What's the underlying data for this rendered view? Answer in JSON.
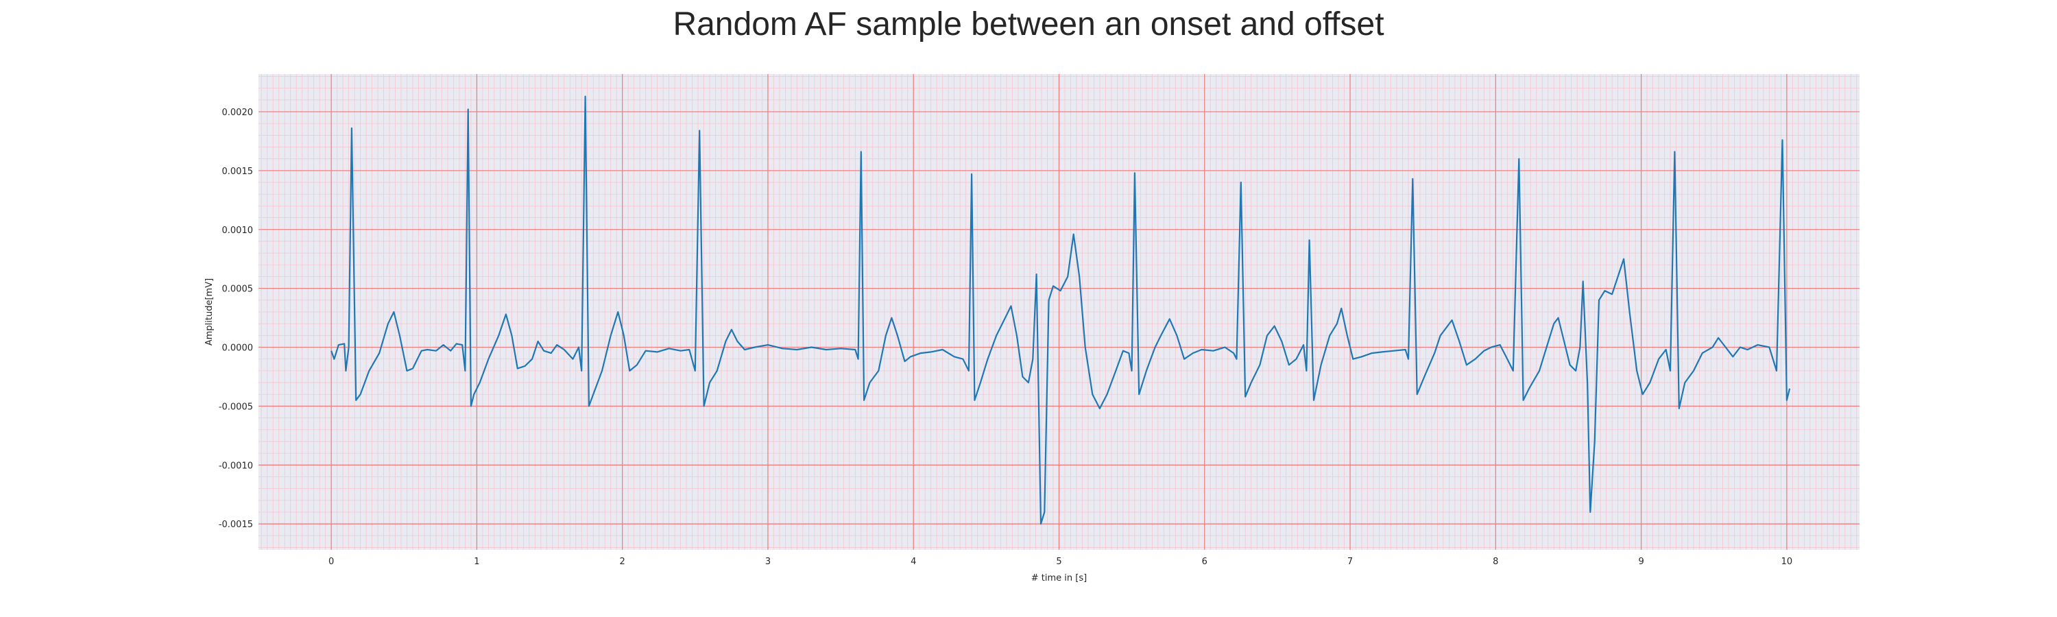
{
  "chart_data": {
    "type": "line",
    "title": "Random AF sample between an onset and offset",
    "xlabel": "# time in [s]",
    "ylabel": "Amplitude[mV]",
    "xlim": [
      -0.5,
      10.5
    ],
    "ylim": [
      -0.00172,
      0.00232
    ],
    "x_ticks": [
      0,
      1,
      2,
      3,
      4,
      5,
      6,
      7,
      8,
      9,
      10
    ],
    "x_tick_labels": [
      "0",
      "1",
      "2",
      "3",
      "4",
      "5",
      "6",
      "7",
      "8",
      "9",
      "10"
    ],
    "y_ticks": [
      -0.0015,
      -0.001,
      -0.0005,
      0.0,
      0.0005,
      0.001,
      0.0015,
      0.002
    ],
    "y_tick_labels": [
      "-0.0015",
      "-0.0010",
      "-0.0005",
      "0.0000",
      "0.0005",
      "0.0010",
      "0.0015",
      "0.0020"
    ],
    "grid": true,
    "major_grid_color": "#f08080",
    "minor_grid_color": "#f5c6cf",
    "background_color": "#eaeaf2",
    "series": [
      {
        "color": "#1f77b4",
        "points": [
          [
            0.0,
            -3e-05
          ],
          [
            0.02,
            -0.0001
          ],
          [
            0.05,
            2e-05
          ],
          [
            0.09,
            3e-05
          ],
          [
            0.1,
            -0.0002
          ],
          [
            0.12,
            0.0
          ],
          [
            0.14,
            0.00186
          ],
          [
            0.17,
            -0.00045
          ],
          [
            0.2,
            -0.0004
          ],
          [
            0.26,
            -0.0002
          ],
          [
            0.33,
            -5e-05
          ],
          [
            0.39,
            0.0002
          ],
          [
            0.43,
            0.0003
          ],
          [
            0.47,
            0.0001
          ],
          [
            0.52,
            -0.0002
          ],
          [
            0.56,
            -0.00018
          ],
          [
            0.62,
            -3e-05
          ],
          [
            0.66,
            -2e-05
          ],
          [
            0.72,
            -3e-05
          ],
          [
            0.77,
            2e-05
          ],
          [
            0.82,
            -3e-05
          ],
          [
            0.86,
            3e-05
          ],
          [
            0.9,
            2e-05
          ],
          [
            0.92,
            -0.0002
          ],
          [
            0.94,
            0.00202
          ],
          [
            0.96,
            -0.0005
          ],
          [
            0.98,
            -0.0004
          ],
          [
            1.02,
            -0.0003
          ],
          [
            1.08,
            -0.0001
          ],
          [
            1.15,
            0.0001
          ],
          [
            1.2,
            0.00028
          ],
          [
            1.24,
            0.0001
          ],
          [
            1.28,
            -0.00018
          ],
          [
            1.33,
            -0.00016
          ],
          [
            1.38,
            -0.0001
          ],
          [
            1.42,
            5e-05
          ],
          [
            1.46,
            -3e-05
          ],
          [
            1.51,
            -5e-05
          ],
          [
            1.55,
            2e-05
          ],
          [
            1.6,
            -2e-05
          ],
          [
            1.66,
            -0.0001
          ],
          [
            1.7,
            0.0
          ],
          [
            1.72,
            -0.0002
          ],
          [
            1.745,
            0.00213
          ],
          [
            1.77,
            -0.0005
          ],
          [
            1.8,
            -0.0004
          ],
          [
            1.86,
            -0.0002
          ],
          [
            1.92,
            0.0001
          ],
          [
            1.97,
            0.0003
          ],
          [
            2.01,
            0.0001
          ],
          [
            2.05,
            -0.0002
          ],
          [
            2.1,
            -0.00015
          ],
          [
            2.16,
            -3e-05
          ],
          [
            2.24,
            -4e-05
          ],
          [
            2.32,
            -1e-05
          ],
          [
            2.4,
            -3e-05
          ],
          [
            2.46,
            -2e-05
          ],
          [
            2.5,
            -0.0002
          ],
          [
            2.53,
            0.00184
          ],
          [
            2.56,
            -0.0005
          ],
          [
            2.6,
            -0.0003
          ],
          [
            2.65,
            -0.0002
          ],
          [
            2.71,
            5e-05
          ],
          [
            2.75,
            0.00015
          ],
          [
            2.79,
            5e-05
          ],
          [
            2.84,
            -2e-05
          ],
          [
            2.91,
            0.0
          ],
          [
            3.0,
            2e-05
          ],
          [
            3.1,
            -1e-05
          ],
          [
            3.2,
            -2e-05
          ],
          [
            3.3,
            0.0
          ],
          [
            3.4,
            -2e-05
          ],
          [
            3.5,
            -1e-05
          ],
          [
            3.6,
            -2e-05
          ],
          [
            3.62,
            -0.0001
          ],
          [
            3.64,
            0.00166
          ],
          [
            3.66,
            -0.00045
          ],
          [
            3.7,
            -0.0003
          ],
          [
            3.76,
            -0.0002
          ],
          [
            3.81,
            0.0001
          ],
          [
            3.85,
            0.00025
          ],
          [
            3.89,
            0.0001
          ],
          [
            3.94,
            -0.00012
          ],
          [
            3.98,
            -8e-05
          ],
          [
            4.05,
            -5e-05
          ],
          [
            4.12,
            -4e-05
          ],
          [
            4.2,
            -2e-05
          ],
          [
            4.28,
            -8e-05
          ],
          [
            4.34,
            -0.0001
          ],
          [
            4.38,
            -0.0002
          ],
          [
            4.4,
            0.00147
          ],
          [
            4.42,
            -0.00045
          ],
          [
            4.46,
            -0.0003
          ],
          [
            4.51,
            -0.0001
          ],
          [
            4.57,
            0.0001
          ],
          [
            4.63,
            0.00025
          ],
          [
            4.67,
            0.00035
          ],
          [
            4.71,
            0.0001
          ],
          [
            4.75,
            -0.00025
          ],
          [
            4.79,
            -0.0003
          ],
          [
            4.82,
            -0.0001
          ],
          [
            4.845,
            0.00062
          ],
          [
            4.875,
            -0.0015
          ],
          [
            4.9,
            -0.0014
          ],
          [
            4.93,
            0.0004
          ],
          [
            4.96,
            0.00052
          ],
          [
            5.01,
            0.00048
          ],
          [
            5.06,
            0.0006
          ],
          [
            5.1,
            0.00096
          ],
          [
            5.14,
            0.0006
          ],
          [
            5.18,
            0.0
          ],
          [
            5.23,
            -0.0004
          ],
          [
            5.28,
            -0.00052
          ],
          [
            5.33,
            -0.0004
          ],
          [
            5.39,
            -0.0002
          ],
          [
            5.44,
            -3e-05
          ],
          [
            5.48,
            -5e-05
          ],
          [
            5.5,
            -0.0002
          ],
          [
            5.52,
            0.00148
          ],
          [
            5.55,
            -0.0004
          ],
          [
            5.6,
            -0.0002
          ],
          [
            5.66,
            0.0
          ],
          [
            5.7,
            0.0001
          ],
          [
            5.76,
            0.00024
          ],
          [
            5.81,
            0.0001
          ],
          [
            5.86,
            -0.0001
          ],
          [
            5.92,
            -5e-05
          ],
          [
            5.98,
            -2e-05
          ],
          [
            6.06,
            -3e-05
          ],
          [
            6.14,
            0.0
          ],
          [
            6.2,
            -5e-05
          ],
          [
            6.22,
            -0.0001
          ],
          [
            6.25,
            0.0014
          ],
          [
            6.28,
            -0.00042
          ],
          [
            6.32,
            -0.0003
          ],
          [
            6.38,
            -0.00015
          ],
          [
            6.43,
            0.0001
          ],
          [
            6.48,
            0.00018
          ],
          [
            6.53,
            5e-05
          ],
          [
            6.58,
            -0.00015
          ],
          [
            6.63,
            -0.0001
          ],
          [
            6.68,
            2e-05
          ],
          [
            6.7,
            -0.0002
          ],
          [
            6.72,
            0.00091
          ],
          [
            6.75,
            -0.00045
          ],
          [
            6.8,
            -0.00015
          ],
          [
            6.86,
            0.0001
          ],
          [
            6.91,
            0.0002
          ],
          [
            6.94,
            0.00033
          ],
          [
            6.98,
            0.0001
          ],
          [
            7.02,
            -0.0001
          ],
          [
            7.08,
            -8e-05
          ],
          [
            7.15,
            -5e-05
          ],
          [
            7.22,
            -4e-05
          ],
          [
            7.3,
            -3e-05
          ],
          [
            7.38,
            -2e-05
          ],
          [
            7.4,
            -0.0001
          ],
          [
            7.43,
            0.00143
          ],
          [
            7.46,
            -0.0004
          ],
          [
            7.51,
            -0.00025
          ],
          [
            7.58,
            -5e-05
          ],
          [
            7.62,
            0.0001
          ],
          [
            7.7,
            0.00023
          ],
          [
            7.75,
            5e-05
          ],
          [
            7.8,
            -0.00015
          ],
          [
            7.86,
            -0.0001
          ],
          [
            7.92,
            -3e-05
          ],
          [
            7.97,
            0.0
          ],
          [
            8.03,
            2e-05
          ],
          [
            8.08,
            -0.0001
          ],
          [
            8.12,
            -0.0002
          ],
          [
            8.16,
            0.0016
          ],
          [
            8.19,
            -0.00045
          ],
          [
            8.23,
            -0.00035
          ],
          [
            8.3,
            -0.0002
          ],
          [
            8.35,
            0.0
          ],
          [
            8.4,
            0.0002
          ],
          [
            8.43,
            0.00025
          ],
          [
            8.47,
            5e-05
          ],
          [
            8.51,
            -0.00015
          ],
          [
            8.55,
            -0.0002
          ],
          [
            8.58,
            0.0
          ],
          [
            8.6,
            0.00056
          ],
          [
            8.63,
            -0.0003
          ],
          [
            8.65,
            -0.0014
          ],
          [
            8.68,
            -0.0008
          ],
          [
            8.71,
            0.0004
          ],
          [
            8.75,
            0.00048
          ],
          [
            8.8,
            0.00045
          ],
          [
            8.84,
            0.0006
          ],
          [
            8.88,
            0.00075
          ],
          [
            8.92,
            0.0003
          ],
          [
            8.97,
            -0.0002
          ],
          [
            9.01,
            -0.0004
          ],
          [
            9.06,
            -0.0003
          ],
          [
            9.12,
            -0.0001
          ],
          [
            9.17,
            -2e-05
          ],
          [
            9.2,
            -0.0002
          ],
          [
            9.23,
            0.00166
          ],
          [
            9.26,
            -0.00052
          ],
          [
            9.3,
            -0.0003
          ],
          [
            9.36,
            -0.0002
          ],
          [
            9.42,
            -5e-05
          ],
          [
            9.49,
            0.0
          ],
          [
            9.53,
            8e-05
          ],
          [
            9.58,
            0.0
          ],
          [
            9.63,
            -8e-05
          ],
          [
            9.68,
            0.0
          ],
          [
            9.73,
            -2e-05
          ],
          [
            9.8,
            2e-05
          ],
          [
            9.88,
            0.0
          ],
          [
            9.93,
            -0.0002
          ],
          [
            9.97,
            0.00176
          ],
          [
            10.0,
            -0.00045
          ],
          [
            10.02,
            -0.00035
          ]
        ]
      }
    ]
  }
}
